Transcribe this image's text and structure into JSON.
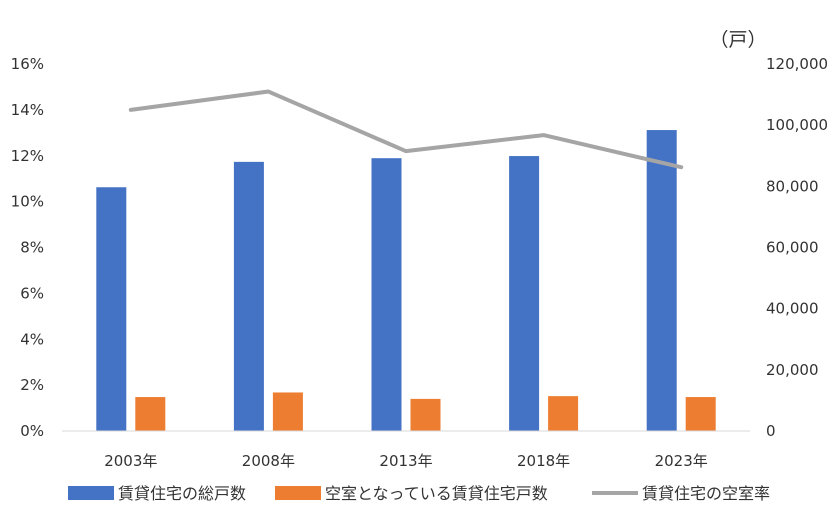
{
  "chart_data": {
    "type": "bar",
    "categories": [
      "2003年",
      "2008年",
      "2013年",
      "2018年",
      "2023年"
    ],
    "series": [
      {
        "name": "賃貸住宅の総戸数",
        "type": "bar",
        "axis": "right",
        "color": "#4472C4",
        "values": [
          79700,
          88000,
          89200,
          89900,
          98400
        ]
      },
      {
        "name": "空室となっている賃貸住宅戸数",
        "type": "bar",
        "axis": "right",
        "color": "#ED7D31",
        "values": [
          11100,
          12600,
          10500,
          11400,
          11100
        ]
      },
      {
        "name": "賃貸住宅の空室率",
        "type": "line",
        "axis": "left",
        "color": "#A5A5A5",
        "values": [
          14.0,
          14.8,
          12.2,
          12.9,
          11.5
        ]
      }
    ],
    "y_left": {
      "ticks": [
        "0%",
        "2%",
        "4%",
        "6%",
        "8%",
        "10%",
        "12%",
        "14%",
        "16%"
      ],
      "ylim": [
        0,
        16
      ]
    },
    "y_right": {
      "unit": "（戸）",
      "ticks": [
        "0",
        "20,000",
        "40,000",
        "60,000",
        "80,000",
        "100,000",
        "120,000"
      ],
      "ylim": [
        0,
        120000
      ]
    },
    "legend_position": "bottom",
    "grid": false
  }
}
